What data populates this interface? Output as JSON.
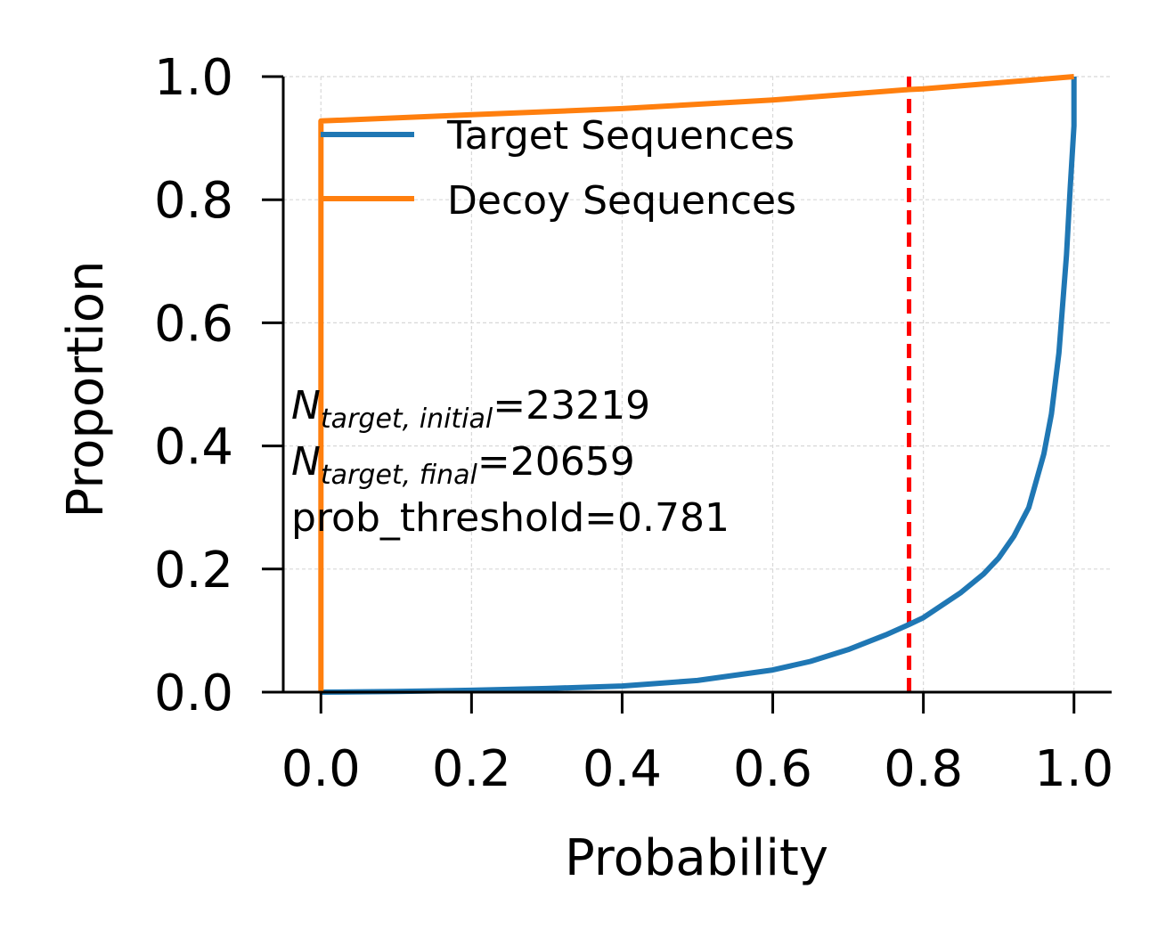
{
  "chart_data": {
    "type": "line",
    "xlabel": "Probability",
    "ylabel": "Proportion",
    "xlim": [
      -0.05,
      1.05
    ],
    "ylim": [
      0.0,
      1.0
    ],
    "x_ticks": [
      "0.0",
      "0.2",
      "0.4",
      "0.6",
      "0.8",
      "1.0"
    ],
    "y_ticks": [
      "0.0",
      "0.2",
      "0.4",
      "0.6",
      "0.8",
      "1.0"
    ],
    "grid": true,
    "legend_position": "top-left",
    "series": [
      {
        "name": "Target Sequences",
        "color": "#1f77b4",
        "x": [
          0.0,
          0.1,
          0.2,
          0.3,
          0.4,
          0.5,
          0.6,
          0.65,
          0.7,
          0.75,
          0.781,
          0.8,
          0.85,
          0.88,
          0.9,
          0.92,
          0.94,
          0.96,
          0.97,
          0.98,
          0.99,
          0.995,
          1.0,
          1.0
        ],
        "y": [
          0.0,
          0.001,
          0.003,
          0.006,
          0.01,
          0.019,
          0.036,
          0.05,
          0.069,
          0.093,
          0.11,
          0.121,
          0.162,
          0.192,
          0.218,
          0.253,
          0.3,
          0.387,
          0.452,
          0.551,
          0.71,
          0.82,
          0.92,
          1.0
        ]
      },
      {
        "name": "Decoy Sequences",
        "color": "#ff7f0e",
        "x": [
          0.0,
          0.0,
          0.2,
          0.4,
          0.6,
          0.781,
          0.8,
          0.9,
          1.0
        ],
        "y": [
          0.0,
          0.928,
          0.938,
          0.948,
          0.962,
          0.979,
          0.98,
          0.99,
          1.0
        ]
      }
    ],
    "threshold": {
      "value": 0.781,
      "color": "#ff0000",
      "style": "dashed"
    },
    "annotations": {
      "line1_main": "N",
      "line1_sub": "target, initial",
      "line1_value": "=23219",
      "line2_main": "N",
      "line2_sub": "target, final",
      "line2_value": "=20659",
      "line3": "prob_threshold=0.781"
    }
  }
}
